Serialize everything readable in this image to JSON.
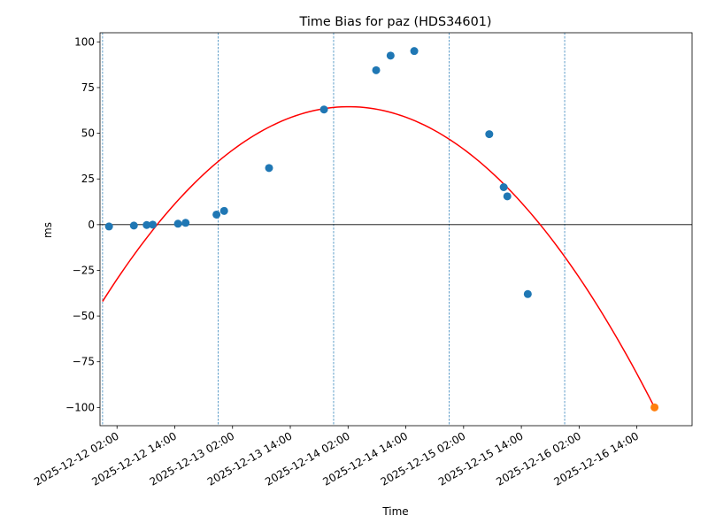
{
  "chart_data": {
    "type": "scatter",
    "title": "Time Bias for paz (HDS34601)",
    "xlabel": "Time",
    "ylabel": "ms",
    "xlim": [
      "2025-12-11T22:28",
      "2025-12-17T01:28"
    ],
    "ylim": [
      -110,
      105
    ],
    "x_ticks": [
      "2025-12-12 02:00",
      "2025-12-12 14:00",
      "2025-12-13 02:00",
      "2025-12-13 14:00",
      "2025-12-14 02:00",
      "2025-12-14 14:00",
      "2025-12-15 02:00",
      "2025-12-15 14:00",
      "2025-12-16 02:00",
      "2025-12-16 14:00"
    ],
    "y_ticks": [
      -100,
      -75,
      -50,
      -25,
      0,
      25,
      50,
      75,
      100
    ],
    "day_markers": [
      "2025-12-11T23:00",
      "2025-12-12T23:00",
      "2025-12-13T23:00",
      "2025-12-14T23:00",
      "2025-12-15T23:00"
    ],
    "series": [
      {
        "type": "scatter",
        "color": "#1f77b4",
        "points": [
          {
            "x": "2025-12-12T00:20",
            "y": -1
          },
          {
            "x": "2025-12-12T05:30",
            "y": -0.5
          },
          {
            "x": "2025-12-12T08:10",
            "y": -0.2
          },
          {
            "x": "2025-12-12T09:25",
            "y": 0
          },
          {
            "x": "2025-12-12T14:40",
            "y": 0.5
          },
          {
            "x": "2025-12-12T16:15",
            "y": 1
          },
          {
            "x": "2025-12-12T22:40",
            "y": 5.5
          },
          {
            "x": "2025-12-13T00:15",
            "y": 7.5
          },
          {
            "x": "2025-12-13T09:35",
            "y": 31
          },
          {
            "x": "2025-12-13T21:00",
            "y": 63
          },
          {
            "x": "2025-12-14T07:50",
            "y": 84.5
          },
          {
            "x": "2025-12-14T10:50",
            "y": 92.5
          },
          {
            "x": "2025-12-14T15:45",
            "y": 95
          },
          {
            "x": "2025-12-15T07:20",
            "y": 49.5
          },
          {
            "x": "2025-12-15T10:20",
            "y": 20.5
          },
          {
            "x": "2025-12-15T11:05",
            "y": 15.5
          },
          {
            "x": "2025-12-15T15:20",
            "y": -38
          }
        ]
      },
      {
        "type": "scatter",
        "color": "#ff7f0e",
        "points": [
          {
            "x": "2025-12-16T17:40",
            "y": -100
          }
        ]
      },
      {
        "type": "line",
        "color": "#ff0000",
        "fit": "quadratic",
        "x_start": "2025-12-11T23:00",
        "x_end": "2025-12-16T17:40",
        "points": [
          {
            "x": "2025-12-11T23:00",
            "y": -42
          },
          {
            "x": "2025-12-14T03:00",
            "y": 64.5
          },
          {
            "x": "2025-12-16T17:40",
            "y": -100
          }
        ]
      }
    ],
    "zero_line": 0
  }
}
